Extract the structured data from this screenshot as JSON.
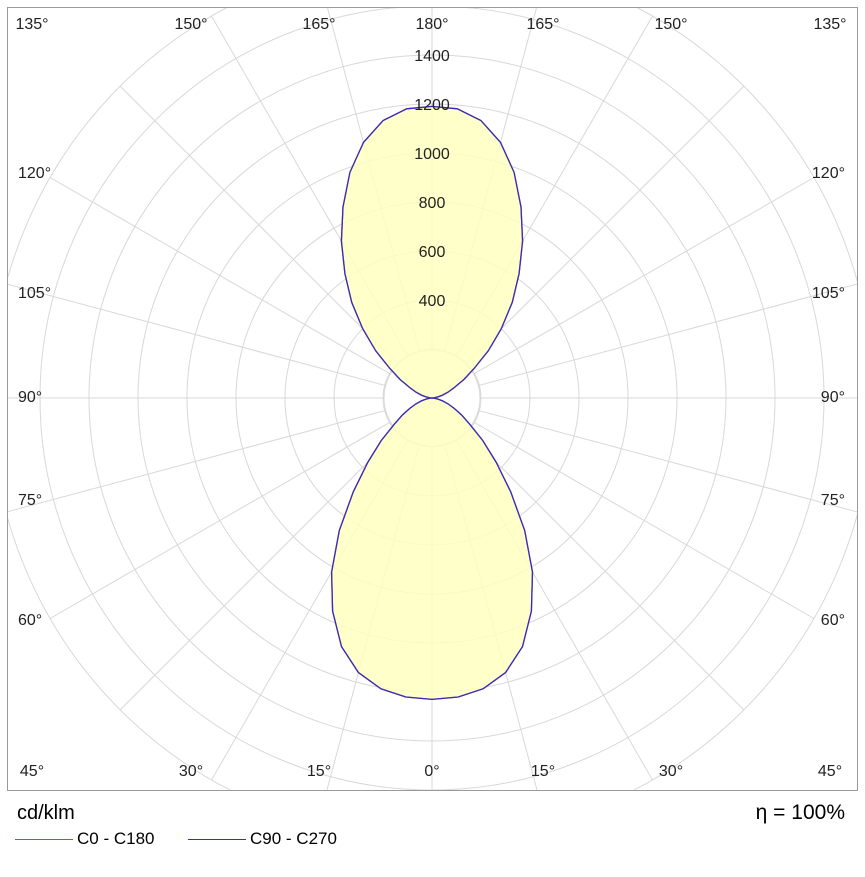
{
  "chart_data": {
    "type": "polar",
    "unit": "cd/klm",
    "efficiency": "η = 100%",
    "radial_ticks": [
      "400",
      "600",
      "800",
      "1000",
      "1200",
      "1400"
    ],
    "radial_max": 1800,
    "angle_labels_top": [
      "135°",
      "150°",
      "165°",
      "180°",
      "165°",
      "150°",
      "135°"
    ],
    "angle_labels_side": [
      "120°",
      "105°",
      "90°",
      "75°",
      "60°"
    ],
    "angle_labels_bottom": [
      "45°",
      "30°",
      "15°",
      "0°",
      "15°",
      "30°",
      "45°"
    ],
    "series": [
      {
        "name": "C0 - C180",
        "color": "#e53935",
        "angles": [
          0,
          5,
          10,
          15,
          20,
          25,
          30,
          35,
          40,
          45,
          50,
          55,
          60,
          65,
          70,
          75,
          80,
          85,
          90,
          95,
          100,
          105,
          110,
          115,
          120,
          125,
          130,
          135,
          140,
          145,
          150,
          155,
          160,
          165,
          170,
          175,
          180
        ],
        "values": [
          1230,
          1225,
          1205,
          1160,
          1080,
          960,
          820,
          660,
          500,
          370,
          270,
          190,
          140,
          100,
          70,
          45,
          25,
          10,
          0,
          10,
          25,
          45,
          70,
          100,
          150,
          210,
          300,
          400,
          510,
          620,
          740,
          860,
          980,
          1080,
          1150,
          1185,
          1190
        ]
      },
      {
        "name": "C90 - C270",
        "color": "#3030c0",
        "angles": [
          0,
          5,
          10,
          15,
          20,
          25,
          30,
          35,
          40,
          45,
          50,
          55,
          60,
          65,
          70,
          75,
          80,
          85,
          90,
          95,
          100,
          105,
          110,
          115,
          120,
          125,
          130,
          135,
          140,
          145,
          150,
          155,
          160,
          165,
          170,
          175,
          180
        ],
        "values": [
          1230,
          1225,
          1205,
          1160,
          1080,
          960,
          820,
          660,
          500,
          370,
          270,
          190,
          140,
          100,
          70,
          45,
          25,
          10,
          0,
          10,
          25,
          45,
          70,
          100,
          150,
          210,
          300,
          400,
          510,
          620,
          740,
          860,
          980,
          1080,
          1150,
          1185,
          1190
        ]
      }
    ]
  }
}
